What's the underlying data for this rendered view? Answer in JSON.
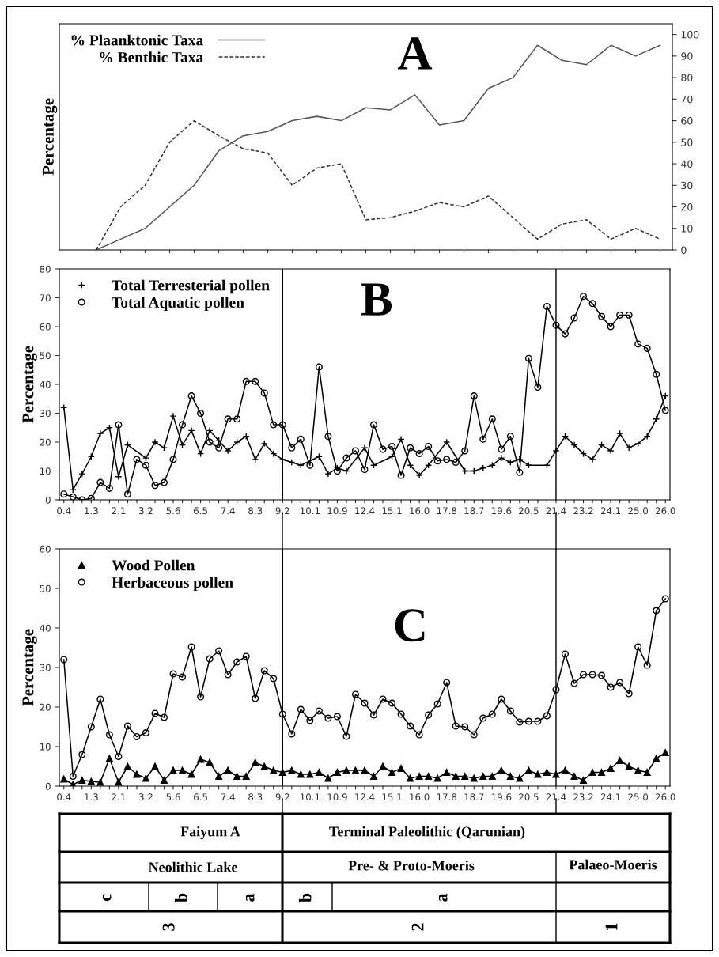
{
  "chart_data": [
    {
      "type": "line",
      "ylabel": "Percentage",
      "annotations": [
        "A"
      ],
      "categories": [
        null,
        null,
        null,
        null,
        null,
        null,
        null,
        null,
        null,
        null,
        null,
        null,
        null,
        null,
        null,
        null,
        null,
        null,
        null,
        null,
        null,
        null,
        null,
        null
      ],
      "ylim": [
        0,
        105
      ],
      "yticks": [
        0,
        10,
        20,
        30,
        40,
        50,
        60,
        70,
        80,
        90,
        100
      ],
      "legend": "top left",
      "series": [
        {
          "name": "% Plaanktonic Taxa",
          "color": "#555555",
          "line_style": "solid",
          "values": [
            0,
            5,
            10,
            20,
            30,
            46,
            53,
            55,
            60,
            62,
            60,
            66,
            65,
            72,
            58,
            60,
            75,
            80,
            95,
            88,
            86,
            95,
            90,
            95
          ]
        },
        {
          "name": "% Benthic Taxa",
          "color": "#333333",
          "line_style": "dashed",
          "values": [
            0,
            20,
            30,
            50,
            60,
            53,
            47,
            45,
            30,
            38,
            40,
            14,
            15,
            18,
            22,
            20,
            25,
            15,
            5,
            12,
            14,
            5,
            10,
            5
          ]
        }
      ]
    },
    {
      "type": "line",
      "ylabel": "Percentage",
      "annotations": [
        "B"
      ],
      "categories": [
        "0.4",
        null,
        null,
        "1.3",
        null,
        null,
        "2.1",
        null,
        null,
        "3.2",
        null,
        null,
        "5.6",
        null,
        null,
        "6.5",
        null,
        null,
        "7.4",
        null,
        null,
        "8.3",
        null,
        null,
        "9.2",
        null,
        null,
        "10.1",
        null,
        null,
        "10.9",
        null,
        null,
        "12.4",
        null,
        null,
        "15.1",
        null,
        null,
        "16.0",
        null,
        null,
        "17.8",
        null,
        null,
        "18.7",
        null,
        null,
        "19.6",
        null,
        null,
        "20.5",
        null,
        null,
        "21.4",
        null,
        null,
        "23.2",
        null,
        null,
        "24.1",
        null,
        null,
        "25.0",
        null,
        null,
        "26.0"
      ],
      "ylim": [
        0,
        80
      ],
      "yticks": [
        0,
        10,
        20,
        30,
        40,
        50,
        60,
        70,
        80
      ],
      "legend": "top left",
      "ref_lines": [
        {
          "axis": "x",
          "value": "9.2",
          "color": "#000000"
        },
        {
          "axis": "x",
          "value": "21.4",
          "color": "#000000"
        }
      ],
      "series": [
        {
          "name": "Total Terresterial pollen",
          "color": "#000000",
          "marker": "cross",
          "values": [
            32,
            3.5,
            9,
            15,
            23,
            25,
            8,
            19,
            null,
            14.5,
            20,
            18,
            29,
            19,
            24,
            16,
            24,
            20.5,
            17,
            20,
            22,
            14,
            19.5,
            16,
            14,
            13,
            12,
            null,
            15,
            9,
            11,
            10,
            null,
            18,
            12,
            null,
            15,
            21,
            12,
            8.5,
            12,
            null,
            20,
            null,
            10,
            10,
            11,
            12,
            14.5,
            13,
            14,
            12,
            null,
            12,
            17,
            22,
            19,
            16,
            14,
            19,
            17,
            23,
            18,
            19.5,
            22,
            28,
            36
          ]
        },
        {
          "name": "Total Aquatic pollen",
          "color": "#000000",
          "marker": "circle",
          "values": [
            2,
            1,
            0,
            0.5,
            6,
            4,
            26,
            2,
            14,
            12,
            5,
            6,
            14,
            26,
            36,
            30,
            20,
            18,
            28,
            28,
            41,
            41,
            37,
            26,
            26,
            18,
            21,
            12,
            46,
            22,
            10,
            14.5,
            17,
            10.5,
            26,
            17.5,
            18.5,
            8.5,
            18,
            16,
            18.5,
            13.5,
            14,
            13,
            17,
            36,
            21,
            28,
            17.5,
            22,
            9.5,
            49,
            39,
            67,
            60.5,
            57.5,
            63,
            70.5,
            68,
            63.5,
            60,
            64,
            64,
            54,
            52.5,
            43.5,
            31
          ]
        }
      ]
    },
    {
      "type": "line",
      "ylabel": "Percentage",
      "annotations": [
        "C"
      ],
      "categories": [
        "0.4",
        null,
        null,
        "1.3",
        null,
        null,
        "2.1",
        null,
        null,
        "3.2",
        null,
        null,
        "5.6",
        null,
        null,
        "6.5",
        null,
        null,
        "7.4",
        null,
        null,
        "8.3",
        null,
        null,
        "9.2",
        null,
        null,
        "10.1",
        null,
        null,
        "10.9",
        null,
        null,
        "12.4",
        null,
        null,
        "15.1",
        null,
        null,
        "16.0",
        null,
        null,
        "17.8",
        null,
        null,
        "18.7",
        null,
        null,
        "19.6",
        null,
        null,
        "20.5",
        null,
        null,
        "21.4",
        null,
        null,
        "23.2",
        null,
        null,
        "24.1",
        null,
        null,
        "25.0",
        null,
        null,
        "26.0"
      ],
      "ylim": [
        0,
        60
      ],
      "yticks": [
        0,
        10,
        20,
        30,
        40,
        50,
        60
      ],
      "legend": "top left",
      "ref_lines": [
        {
          "axis": "x",
          "value": "9.2",
          "color": "#000000"
        },
        {
          "axis": "x",
          "value": "21.4",
          "color": "#000000"
        }
      ],
      "series": [
        {
          "name": "Wood Pollen",
          "color": "#000000",
          "marker": "triangle",
          "values": [
            1.8,
            0.4,
            1.5,
            1.2,
            1,
            7,
            1,
            5,
            3,
            2,
            5,
            1.5,
            4,
            4,
            3,
            6.8,
            6,
            2.5,
            4,
            2.5,
            2.5,
            6,
            5,
            4,
            3.5,
            4,
            3,
            3,
            3.5,
            2,
            3.5,
            4,
            4,
            4,
            2.5,
            5,
            3.5,
            4.5,
            2,
            2.5,
            2.5,
            2,
            3.5,
            2.5,
            2.5,
            2,
            2.5,
            2.5,
            4,
            2.5,
            2,
            4,
            3,
            3.5,
            3,
            4,
            2.5,
            1.5,
            3.5,
            3.5,
            4.5,
            6.5,
            5,
            4,
            3.5,
            7,
            8.5
          ]
        },
        {
          "name": "Herbaceous pollen",
          "color": "#000000",
          "marker": "circle",
          "values": [
            32,
            2.5,
            8,
            15,
            22,
            13,
            7.5,
            15.2,
            12.5,
            13.5,
            18.4,
            17.4,
            28.4,
            27.6,
            35.2,
            22.6,
            32.2,
            34.2,
            28.2,
            31.4,
            32.8,
            22.2,
            29.2,
            27.2,
            18.2,
            13.2,
            19.4,
            16.6,
            19,
            17.2,
            17.6,
            12.6,
            23.2,
            21,
            18,
            22,
            21,
            18.2,
            15.2,
            13,
            18,
            20.8,
            26.2,
            15.2,
            15,
            13,
            17.2,
            18.2,
            22,
            19,
            16.2,
            16.4,
            16.4,
            17.8,
            24.4,
            33.4,
            26,
            28.2,
            28.2,
            28,
            25,
            26.2,
            23.4,
            35.2,
            30.6,
            44.4,
            47.4
          ]
        }
      ]
    },
    {
      "type": "other",
      "annotations": [
        "Faiyum A",
        "Terminal Paleolithic (Qarunian)",
        "Neolithic Lake",
        "Pre- & Proto-Moeris",
        "Palaeo-Moeris",
        "c",
        "b",
        "a",
        "b",
        "a",
        "3",
        "2",
        "1"
      ]
    }
  ]
}
